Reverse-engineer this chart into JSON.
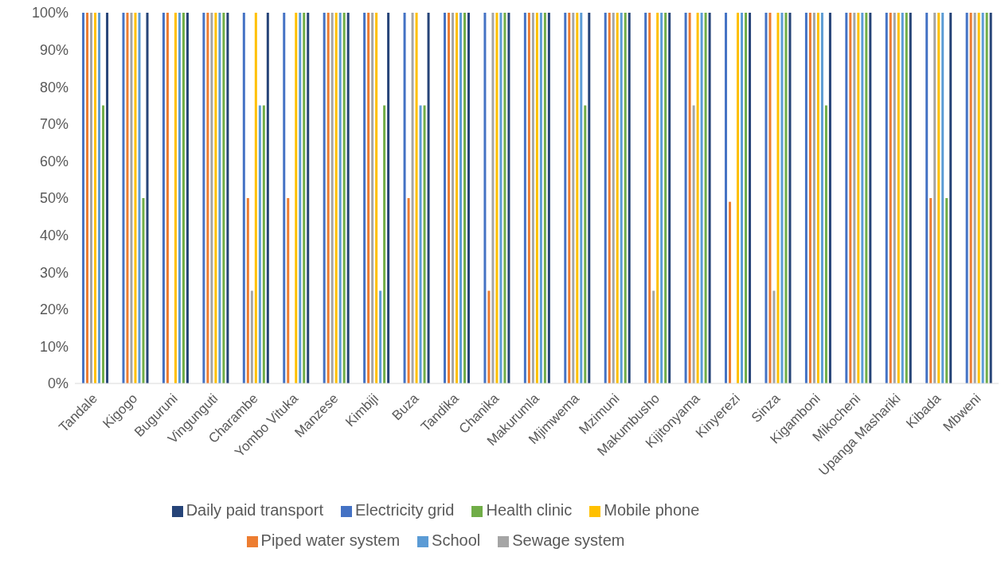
{
  "chart_data": {
    "type": "bar",
    "categories": [
      "Tandale",
      "Kigogo",
      "Buguruni",
      "Vingunguti",
      "Charambe",
      "Yombo Vituka",
      "Manzese",
      "Kimbiji",
      "Buza",
      "Tandika",
      "Chanika",
      "Makurumla",
      "Mjimwema",
      "Mzimuni",
      "Makumbusho",
      "Kijitonyama",
      "Kinyerezi",
      "Sinza",
      "Kigamboni",
      "Mikocheni",
      "Upanga Mashariki",
      "Kibada",
      "Mbweni"
    ],
    "series": [
      {
        "name": "Electricity grid",
        "color": "#4472c4",
        "values": [
          100,
          100,
          100,
          100,
          100,
          100,
          100,
          100,
          100,
          100,
          100,
          100,
          100,
          100,
          100,
          100,
          100,
          100,
          100,
          100,
          100,
          100,
          100
        ]
      },
      {
        "name": "Piped water system",
        "color": "#ed7d31",
        "values": [
          100,
          100,
          100,
          100,
          50,
          50,
          100,
          100,
          50,
          100,
          25,
          100,
          100,
          100,
          100,
          100,
          49,
          100,
          100,
          100,
          100,
          50,
          100
        ]
      },
      {
        "name": "Sewage system",
        "color": "#a5a5a5",
        "values": [
          100,
          100,
          0,
          100,
          25,
          0,
          100,
          100,
          100,
          100,
          100,
          100,
          100,
          100,
          25,
          75,
          0,
          25,
          100,
          100,
          100,
          100,
          100
        ]
      },
      {
        "name": "Mobile phone",
        "color": "#ffc000",
        "values": [
          100,
          100,
          100,
          100,
          100,
          100,
          100,
          100,
          100,
          100,
          100,
          100,
          100,
          100,
          100,
          100,
          100,
          100,
          100,
          100,
          100,
          100,
          100
        ]
      },
      {
        "name": "School",
        "color": "#5b9bd5",
        "values": [
          100,
          100,
          100,
          100,
          75,
          100,
          100,
          25,
          75,
          100,
          100,
          100,
          100,
          100,
          100,
          100,
          100,
          100,
          100,
          100,
          100,
          100,
          100
        ]
      },
      {
        "name": "Health clinic",
        "color": "#70ad47",
        "values": [
          75,
          50,
          100,
          100,
          75,
          100,
          100,
          75,
          75,
          100,
          100,
          100,
          75,
          100,
          100,
          100,
          100,
          100,
          75,
          100,
          100,
          50,
          100
        ]
      },
      {
        "name": "Daily paid transport",
        "color": "#264478",
        "values": [
          100,
          100,
          100,
          100,
          100,
          100,
          100,
          100,
          100,
          100,
          100,
          100,
          100,
          100,
          100,
          100,
          100,
          100,
          100,
          100,
          100,
          100,
          100
        ]
      }
    ],
    "ylim": [
      0,
      100
    ],
    "yticks": [
      {
        "value": 0,
        "label": "0%"
      },
      {
        "value": 10,
        "label": "10%"
      },
      {
        "value": 20,
        "label": "20%"
      },
      {
        "value": 30,
        "label": "30%"
      },
      {
        "value": 40,
        "label": "40%"
      },
      {
        "value": 50,
        "label": "50%"
      },
      {
        "value": 60,
        "label": "60%"
      },
      {
        "value": 70,
        "label": "70%"
      },
      {
        "value": 80,
        "label": "80%"
      },
      {
        "value": 90,
        "label": "90%"
      },
      {
        "value": 100,
        "label": "100%"
      }
    ],
    "grid": false,
    "legend": "bottom"
  }
}
